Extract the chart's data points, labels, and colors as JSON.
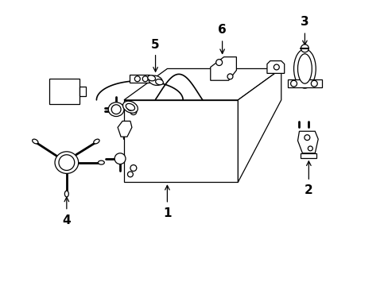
{
  "background_color": "#ffffff",
  "line_color": "#000000",
  "line_width": 0.9,
  "fig_width": 4.89,
  "fig_height": 3.6,
  "dpi": 100
}
